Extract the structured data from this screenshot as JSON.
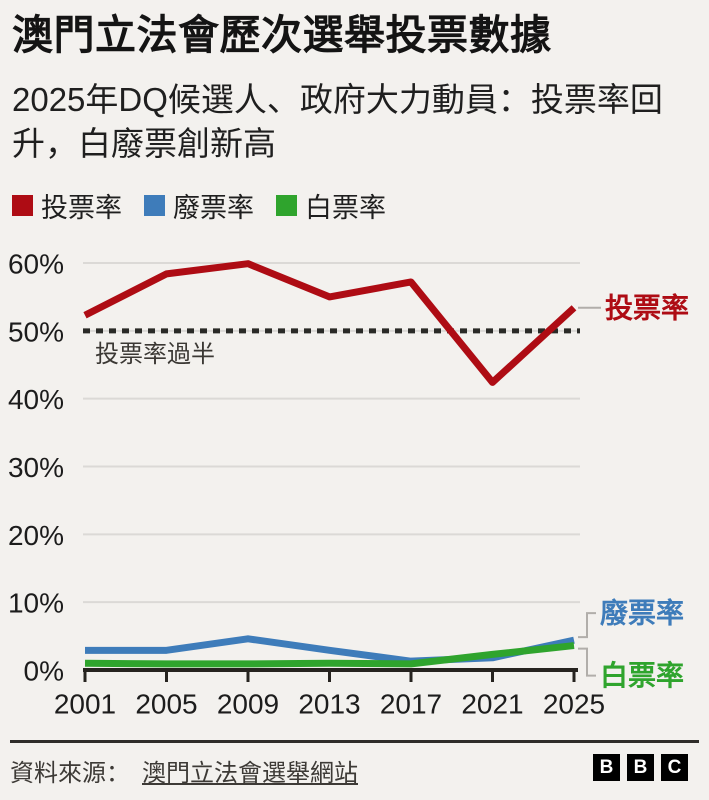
{
  "header": {
    "title": "澳門立法會歷次選舉投票數據",
    "subtitle": "2025年DQ候選人、政府大力動員：投票率回升，白廢票創新高"
  },
  "legend": {
    "items": [
      {
        "label": "投票率",
        "color": "#ae0c14"
      },
      {
        "label": "廢票率",
        "color": "#3e7cba"
      },
      {
        "label": "白票率",
        "color": "#2fa42d"
      }
    ]
  },
  "chart_data": {
    "type": "line",
    "title": "澳門立法會歷次選舉投票數據",
    "x": [
      2001,
      2005,
      2009,
      2013,
      2017,
      2021,
      2025
    ],
    "series": [
      {
        "name": "投票率",
        "color": "#ae0c14",
        "z": 2,
        "callout_dy": 0,
        "values": [
          52.3,
          58.4,
          59.9,
          55.0,
          57.2,
          42.4,
          53.4
        ]
      },
      {
        "name": "廢票率",
        "color": "#3e7cba",
        "z": 0,
        "callout_dy": -24,
        "values": [
          2.9,
          2.9,
          4.6,
          2.9,
          1.3,
          1.8,
          4.4
        ]
      },
      {
        "name": "白票率",
        "color": "#2fa42d",
        "z": 1,
        "callout_dy": 27,
        "values": [
          1.0,
          0.9,
          0.9,
          1.0,
          0.9,
          2.3,
          3.6
        ]
      }
    ],
    "ylim": [
      0,
      60
    ],
    "yticks": [
      0,
      10,
      20,
      30,
      40,
      50,
      60
    ],
    "ytick_suffix": "%",
    "grid": true,
    "reference_line": {
      "value": 50,
      "label": "投票率過半"
    },
    "legend_position": "top",
    "direct_labels": true
  },
  "footer": {
    "source_label": "資料來源：",
    "source_link": "澳門立法會選舉網站",
    "logo_letters": [
      "B",
      "B",
      "C"
    ]
  }
}
